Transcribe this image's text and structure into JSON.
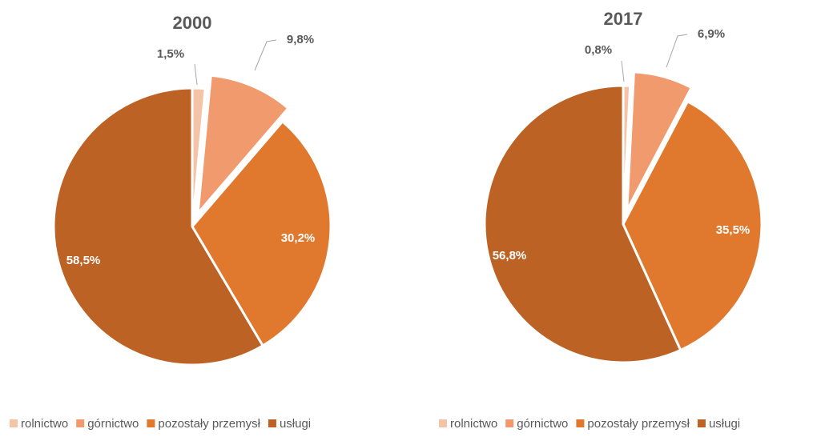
{
  "chart_data": [
    {
      "type": "pie",
      "title": "2000",
      "categories": [
        "rolnictwo",
        "górnictwo",
        "pozostały przemysł",
        "usługi"
      ],
      "values": [
        1.5,
        9.8,
        30.2,
        58.5
      ],
      "value_labels": [
        "1,5%",
        "9,8%",
        "30,2%",
        "58,5%"
      ],
      "colors": [
        "#f5c4a8",
        "#f09a6e",
        "#e0782e",
        "#bc6224"
      ],
      "legend": "bottom"
    },
    {
      "type": "pie",
      "title": "2017",
      "categories": [
        "rolnictwo",
        "górnictwo",
        "pozostały przemysł",
        "usługi"
      ],
      "values": [
        0.8,
        6.9,
        35.5,
        56.8
      ],
      "value_labels": [
        "0,8%",
        "6,9%",
        "35,5%",
        "56,8%"
      ],
      "colors": [
        "#f5c4a8",
        "#f09a6e",
        "#e0782e",
        "#bc6224"
      ],
      "legend": "bottom"
    }
  ]
}
